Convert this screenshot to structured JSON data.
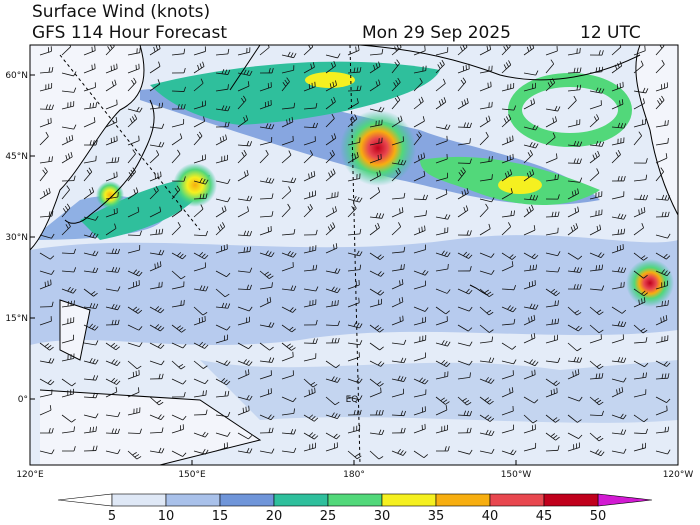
{
  "header": {
    "title": "Surface Wind (knots)",
    "subtitle": "GFS 114 Hour Forecast",
    "date": "Mon 29 Sep 2025",
    "time": "12 UTC"
  },
  "map": {
    "lat_ticks": [
      {
        "value": 60,
        "label": "60°N"
      },
      {
        "value": 45,
        "label": "45°N"
      },
      {
        "value": 30,
        "label": "30°N"
      },
      {
        "value": 15,
        "label": "15°N"
      },
      {
        "value": 0,
        "label": "0°"
      }
    ],
    "lon_ticks": [
      {
        "value": 120,
        "label": "120°E"
      },
      {
        "value": 150,
        "label": "150°E"
      },
      {
        "value": 180,
        "label": "180°"
      },
      {
        "value": 210,
        "label": "150°W"
      },
      {
        "value": 240,
        "label": "120°W"
      }
    ],
    "equator_label": "EQ"
  },
  "colorbar": {
    "ticks": [
      5,
      10,
      15,
      20,
      25,
      30,
      35,
      40,
      45,
      50
    ],
    "colors": [
      "#ffffff",
      "#dfe8f6",
      "#a9c1ea",
      "#6f95d9",
      "#2fbf9c",
      "#52d87a",
      "#f5f020",
      "#f7ae10",
      "#e8474f",
      "#c0001c",
      "#d21ad2"
    ]
  }
}
